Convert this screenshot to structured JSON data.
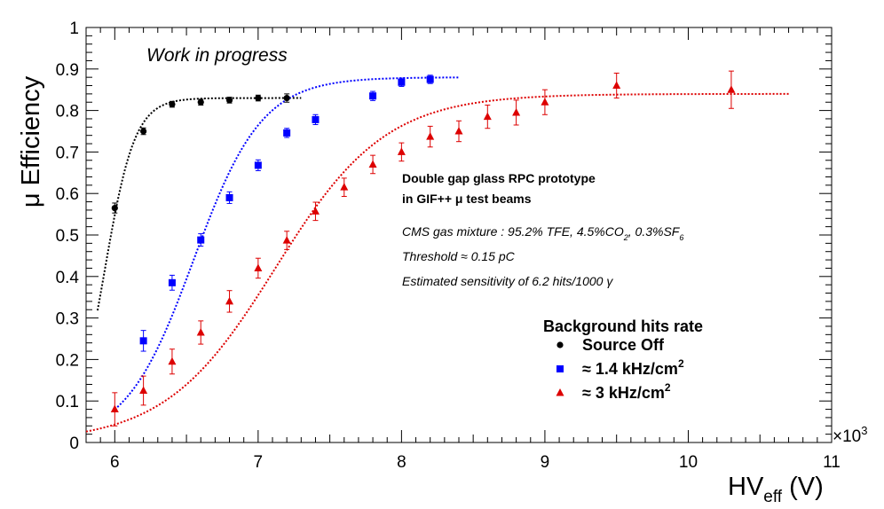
{
  "chart_data": {
    "type": "scatter",
    "xlabel": "HV",
    "xlabel_sub": "eff",
    "xlabel_unit": " (V)",
    "ylabel": "μ Efficiency",
    "x_multiplier_label": "×10",
    "x_multiplier_exp": "3",
    "xlim": [
      5.8,
      11
    ],
    "ylim": [
      0,
      1
    ],
    "x_ticks": [
      6,
      7,
      8,
      9,
      10,
      11
    ],
    "y_ticks": [
      0,
      0.1,
      0.2,
      0.3,
      0.4,
      0.5,
      0.6,
      0.7,
      0.8,
      0.9,
      1
    ],
    "y_tick_labels": [
      "0",
      "0.1",
      "0.2",
      "0.3",
      "0.4",
      "0.5",
      "0.6",
      "0.7",
      "0.8",
      "0.9",
      "1"
    ],
    "grid": false,
    "legend_placement": "bottom-right",
    "series": [
      {
        "name": "Source Off",
        "color": "#000000",
        "marker": "circle",
        "x": [
          6.0,
          6.2,
          6.4,
          6.6,
          6.8,
          7.0,
          7.2
        ],
        "y": [
          0.565,
          0.75,
          0.815,
          0.82,
          0.825,
          0.83,
          0.83
        ],
        "err": [
          0.012,
          0.008,
          0.007,
          0.007,
          0.007,
          0.007,
          0.01
        ],
        "fit": {
          "plateau": 0.83,
          "hv50": 5.93,
          "slope": 9.5,
          "xmin": 5.88,
          "xmax": 7.3
        }
      },
      {
        "name": "≈ 1.4 kHz/cm",
        "name_sup": "2",
        "color": "#0000ff",
        "marker": "square",
        "x": [
          6.2,
          6.4,
          6.6,
          6.8,
          7.0,
          7.2,
          7.4,
          7.8,
          8.0,
          8.2
        ],
        "y": [
          0.245,
          0.385,
          0.488,
          0.59,
          0.668,
          0.746,
          0.778,
          0.835,
          0.868,
          0.875
        ],
        "err": [
          0.025,
          0.018,
          0.015,
          0.014,
          0.013,
          0.011,
          0.012,
          0.011,
          0.01,
          0.01
        ],
        "fit": {
          "plateau": 0.88,
          "hv50": 6.55,
          "slope": 4.2,
          "xmin": 6.0,
          "xmax": 8.4
        }
      },
      {
        "name": "≈ 3 kHz/cm",
        "name_sup": "2",
        "color": "#dd0000",
        "marker": "triangle",
        "x": [
          6.0,
          6.2,
          6.4,
          6.6,
          6.8,
          7.0,
          7.2,
          7.4,
          7.6,
          7.8,
          8.0,
          8.2,
          8.4,
          8.6,
          8.8,
          9.0,
          9.5,
          10.3
        ],
        "y": [
          0.08,
          0.125,
          0.195,
          0.265,
          0.34,
          0.42,
          0.487,
          0.557,
          0.615,
          0.67,
          0.7,
          0.737,
          0.75,
          0.785,
          0.795,
          0.82,
          0.86,
          0.85
        ],
        "err": [
          0.04,
          0.035,
          0.03,
          0.028,
          0.026,
          0.024,
          0.022,
          0.022,
          0.022,
          0.022,
          0.022,
          0.025,
          0.025,
          0.028,
          0.03,
          0.03,
          0.03,
          0.045
        ],
        "fit": {
          "plateau": 0.84,
          "hv50": 7.12,
          "slope": 2.6,
          "xmin": 5.8,
          "xmax": 10.7
        }
      }
    ],
    "annotations": {
      "work_in_progress": "Work in progress",
      "title_line1": "Double gap glass RPC prototype",
      "title_line2": "in GIF++ μ test beams",
      "gas_mixture_prefix": "CMS gas mixture : 95.2% TFE, 4.5%CO",
      "gas_sub1": "2",
      "gas_mid": ", 0.3%SF",
      "gas_sub2": "6",
      "threshold": "Threshold ≈ 0.15 pC",
      "sensitivity": "Estimated sensitivity of 6.2 hits/1000 γ"
    },
    "legend_title": "Background hits rate"
  }
}
